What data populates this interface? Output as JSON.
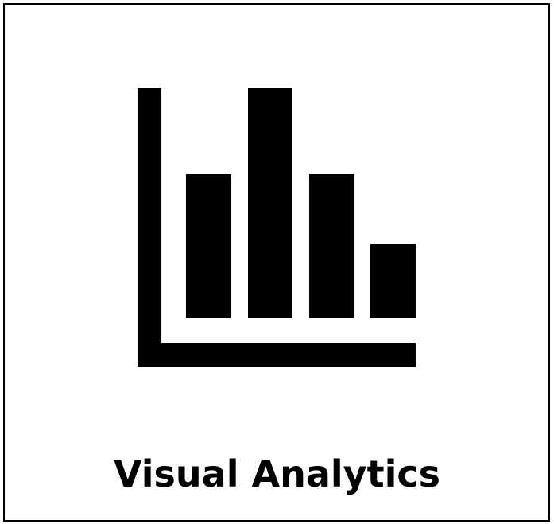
{
  "card": {
    "icon": "bar-chart-icon",
    "title": "Visual Analytics",
    "colors": {
      "foreground": "#000000",
      "background": "#ffffff"
    }
  }
}
